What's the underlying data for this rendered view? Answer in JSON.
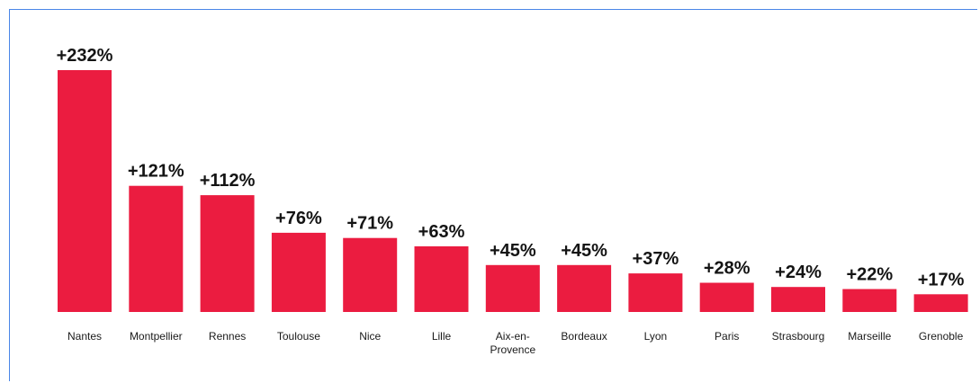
{
  "chart_data": {
    "type": "bar",
    "categories": [
      "Nantes",
      "Montpellier",
      "Rennes",
      "Toulouse",
      "Nice",
      "Lille",
      "Aix-en-Provence",
      "Bordeaux",
      "Lyon",
      "Paris",
      "Strasbourg",
      "Marseille",
      "Grenoble"
    ],
    "category_label_lines": [
      [
        "Nantes"
      ],
      [
        "Montpellier"
      ],
      [
        "Rennes"
      ],
      [
        "Toulouse"
      ],
      [
        "Nice"
      ],
      [
        "Lille"
      ],
      [
        "Aix-en-",
        "Provence"
      ],
      [
        "Bordeaux"
      ],
      [
        "Lyon"
      ],
      [
        "Paris"
      ],
      [
        "Strasbourg"
      ],
      [
        "Marseille"
      ],
      [
        "Grenoble"
      ]
    ],
    "values": [
      232,
      121,
      112,
      76,
      71,
      63,
      45,
      45,
      37,
      28,
      24,
      22,
      17
    ],
    "data_labels": [
      "+232%",
      "+121%",
      "+112%",
      "+76%",
      "+71%",
      "+63%",
      "+45%",
      "+45%",
      "+37%",
      "+28%",
      "+24%",
      "+22%",
      "+17%"
    ],
    "title": "",
    "xlabel": "",
    "ylabel": "",
    "ylim": [
      0,
      232
    ],
    "grid": false,
    "legend": "none",
    "colors": {
      "bar": "#eb1c40",
      "text": "#141414",
      "frame": "#4a86e8"
    }
  }
}
